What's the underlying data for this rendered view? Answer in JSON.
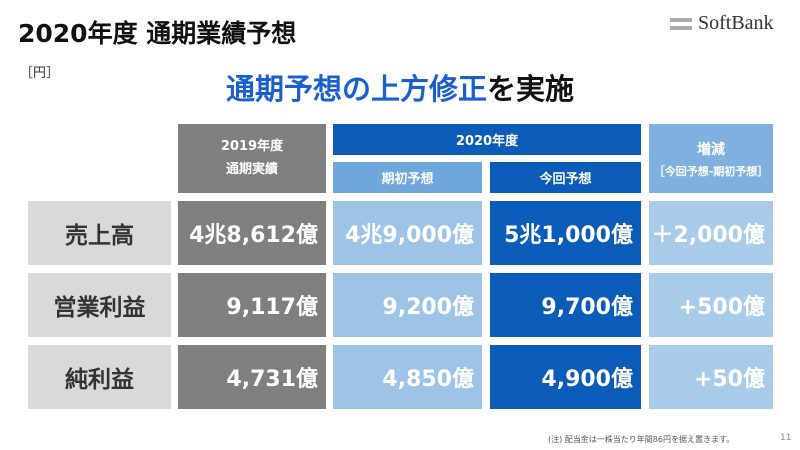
{
  "title": "2020年度 通期業績予想",
  "unit": "［円］",
  "logo": "SoftBank",
  "headline": {
    "blue": "通期予想の上方修正",
    "black": "を実施"
  },
  "header": {
    "fy2019": "2019年度\n通期実績",
    "fy2020": "2020年度",
    "initial": "期初予想",
    "current": "今回予想",
    "diff_title": "増減",
    "diff_sub": "［今回予想-期初予想］"
  },
  "rows": [
    {
      "label": "売上高",
      "fy2019": "4兆8,612億",
      "initial": "4兆9,000億",
      "current": "5兆1,000億",
      "diff": "＋2,000億"
    },
    {
      "label": "営業利益",
      "fy2019": "9,117億",
      "initial": "9,200億",
      "current": "9,700億",
      "diff": "+500億"
    },
    {
      "label": "純利益",
      "fy2019": "4,731億",
      "initial": "4,850億",
      "current": "4,900億",
      "diff": "+50億"
    }
  ],
  "note": "(注) 配当金は一株当たり年間86円を据え置きます。",
  "page": "11"
}
